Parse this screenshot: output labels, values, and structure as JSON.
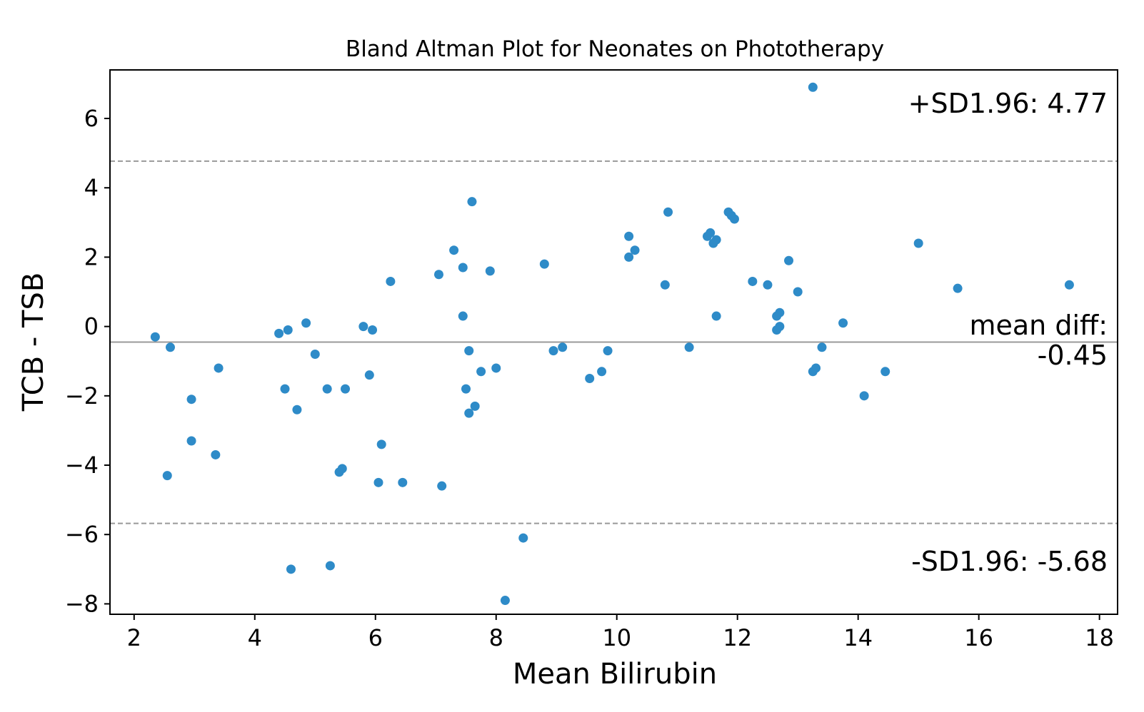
{
  "chart_data": {
    "type": "scatter",
    "title": "Bland Altman Plot for Neonates on Phototherapy",
    "xlabel": "Mean Bilirubin",
    "ylabel": "TCB - TSB",
    "xlim": [
      1.6,
      18.3
    ],
    "ylim": [
      -8.3,
      7.4
    ],
    "xticks": [
      2,
      4,
      6,
      8,
      10,
      12,
      14,
      16,
      18
    ],
    "yticks": [
      -8,
      -6,
      -4,
      -2,
      0,
      2,
      4,
      6
    ],
    "point_color": "#2e8bc8",
    "line_color": "#999999",
    "grid": false,
    "mean_diff": -0.45,
    "upper_loa": 4.77,
    "lower_loa": -5.68,
    "annotations": {
      "upper": "+SD1.96: 4.77",
      "mean_line1": "mean diff:",
      "mean_line2": "-0.45",
      "lower": "-SD1.96: -5.68"
    },
    "points": [
      {
        "x": 2.35,
        "y": -0.3
      },
      {
        "x": 2.55,
        "y": -4.3
      },
      {
        "x": 2.6,
        "y": -0.6
      },
      {
        "x": 2.95,
        "y": -2.1
      },
      {
        "x": 2.95,
        "y": -3.3
      },
      {
        "x": 3.35,
        "y": -3.7
      },
      {
        "x": 3.4,
        "y": -1.2
      },
      {
        "x": 4.4,
        "y": -0.2
      },
      {
        "x": 4.5,
        "y": -1.8
      },
      {
        "x": 4.55,
        "y": -0.1
      },
      {
        "x": 4.6,
        "y": -7.0
      },
      {
        "x": 4.7,
        "y": -2.4
      },
      {
        "x": 4.85,
        "y": 0.1
      },
      {
        "x": 5.0,
        "y": -0.8
      },
      {
        "x": 5.2,
        "y": -1.8
      },
      {
        "x": 5.25,
        "y": -6.9
      },
      {
        "x": 5.4,
        "y": -4.2
      },
      {
        "x": 5.45,
        "y": -4.1
      },
      {
        "x": 5.5,
        "y": -1.8
      },
      {
        "x": 5.8,
        "y": 0.0
      },
      {
        "x": 5.9,
        "y": -1.4
      },
      {
        "x": 5.95,
        "y": -0.1
      },
      {
        "x": 6.05,
        "y": -4.5
      },
      {
        "x": 6.1,
        "y": -3.4
      },
      {
        "x": 6.25,
        "y": 1.3
      },
      {
        "x": 6.45,
        "y": -4.5
      },
      {
        "x": 7.05,
        "y": 1.5
      },
      {
        "x": 7.1,
        "y": -4.6
      },
      {
        "x": 7.3,
        "y": 2.2
      },
      {
        "x": 7.45,
        "y": 1.7
      },
      {
        "x": 7.45,
        "y": 0.3
      },
      {
        "x": 7.5,
        "y": -1.8
      },
      {
        "x": 7.55,
        "y": -0.7
      },
      {
        "x": 7.55,
        "y": -2.5
      },
      {
        "x": 7.6,
        "y": 3.6
      },
      {
        "x": 7.65,
        "y": -2.3
      },
      {
        "x": 7.75,
        "y": -1.3
      },
      {
        "x": 7.9,
        "y": 1.6
      },
      {
        "x": 8.0,
        "y": -1.2
      },
      {
        "x": 8.15,
        "y": -7.9
      },
      {
        "x": 8.45,
        "y": -6.1
      },
      {
        "x": 8.8,
        "y": 1.8
      },
      {
        "x": 8.95,
        "y": -0.7
      },
      {
        "x": 9.1,
        "y": -0.6
      },
      {
        "x": 9.55,
        "y": -1.5
      },
      {
        "x": 9.75,
        "y": -1.3
      },
      {
        "x": 9.85,
        "y": -0.7
      },
      {
        "x": 10.2,
        "y": 2.6
      },
      {
        "x": 10.2,
        "y": 2.0
      },
      {
        "x": 10.3,
        "y": 2.2
      },
      {
        "x": 10.8,
        "y": 1.2
      },
      {
        "x": 10.85,
        "y": 3.3
      },
      {
        "x": 11.2,
        "y": -0.6
      },
      {
        "x": 11.5,
        "y": 2.6
      },
      {
        "x": 11.55,
        "y": 2.7
      },
      {
        "x": 11.6,
        "y": 2.4
      },
      {
        "x": 11.65,
        "y": 2.5
      },
      {
        "x": 11.65,
        "y": 0.3
      },
      {
        "x": 11.85,
        "y": 3.3
      },
      {
        "x": 11.9,
        "y": 3.2
      },
      {
        "x": 11.95,
        "y": 3.1
      },
      {
        "x": 12.25,
        "y": 1.3
      },
      {
        "x": 12.5,
        "y": 1.2
      },
      {
        "x": 12.65,
        "y": 0.3
      },
      {
        "x": 12.65,
        "y": -0.1
      },
      {
        "x": 12.7,
        "y": 0.4
      },
      {
        "x": 12.7,
        "y": 0.0
      },
      {
        "x": 12.85,
        "y": 1.9
      },
      {
        "x": 13.0,
        "y": 1.0
      },
      {
        "x": 13.25,
        "y": 6.9
      },
      {
        "x": 13.25,
        "y": -1.3
      },
      {
        "x": 13.3,
        "y": -1.2
      },
      {
        "x": 13.4,
        "y": -0.6
      },
      {
        "x": 13.75,
        "y": 0.1
      },
      {
        "x": 14.1,
        "y": -2.0
      },
      {
        "x": 14.45,
        "y": -1.3
      },
      {
        "x": 15.0,
        "y": 2.4
      },
      {
        "x": 15.65,
        "y": 1.1
      },
      {
        "x": 17.5,
        "y": 1.2
      }
    ]
  }
}
